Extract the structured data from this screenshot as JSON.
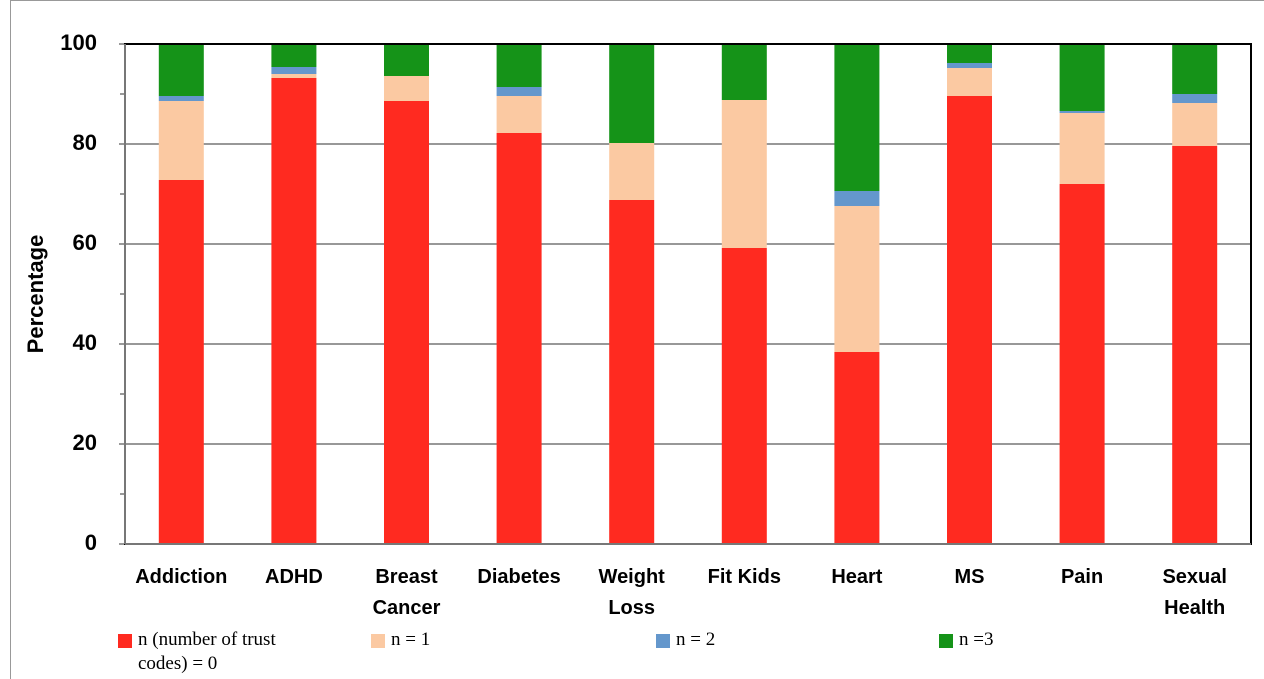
{
  "chart_data": {
    "type": "stacked_bar",
    "y_label": "Percentage",
    "categories": [
      "Addiction",
      "ADHD",
      "Breast\nCancer",
      "Diabetes",
      "Weight\nLoss",
      "Fit Kids",
      "Heart",
      "MS",
      "Pain",
      "Sexual\nHealth"
    ],
    "series": [
      {
        "name": "n (number of trust codes) = 0",
        "color": "#ff2a20",
        "values": [
          72.8,
          93.2,
          88.6,
          82.2,
          68.8,
          59.2,
          38.4,
          89.6,
          72.0,
          79.6
        ]
      },
      {
        "name": "n = 1",
        "color": "#fbc9a2",
        "values": [
          15.8,
          0.8,
          5.0,
          7.4,
          11.4,
          29.6,
          29.2,
          5.6,
          14.2,
          8.6
        ]
      },
      {
        "name": "n = 2",
        "color": "#6497cc",
        "values": [
          1.0,
          1.4,
          0.0,
          1.8,
          0.0,
          0.0,
          3.0,
          1.0,
          0.4,
          1.8
        ]
      },
      {
        "name": "n =3",
        "color": "#159318",
        "values": [
          10.4,
          4.6,
          6.4,
          8.6,
          19.8,
          11.2,
          29.4,
          3.8,
          13.4,
          10.0
        ]
      }
    ],
    "ylim": [
      0,
      100
    ],
    "yticks": [
      0,
      20,
      40,
      60,
      80,
      100
    ],
    "yminorticks": [
      10,
      30,
      50,
      70,
      90
    ],
    "grid": true
  }
}
